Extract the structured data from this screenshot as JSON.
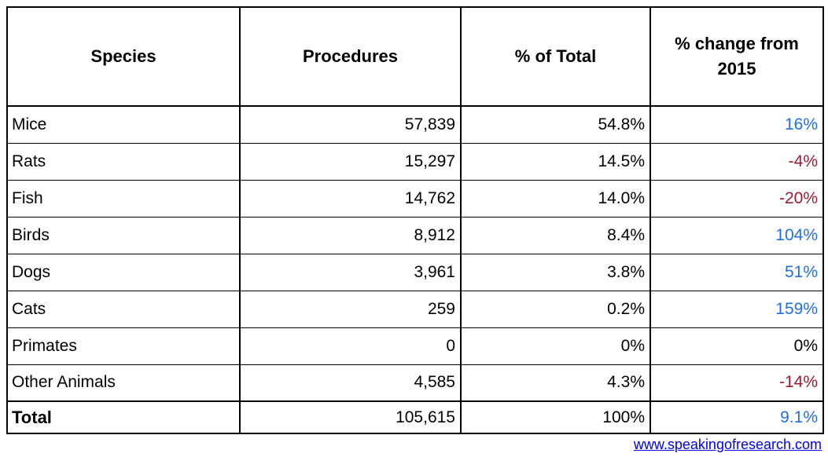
{
  "table": {
    "columns": [
      "Species",
      "Procedures",
      "% of Total",
      "% change from 2015"
    ],
    "rows": [
      {
        "species": "Mice",
        "procedures": "57,839",
        "pct_total": "54.8%",
        "change": "16%",
        "change_dir": "up"
      },
      {
        "species": "Rats",
        "procedures": "15,297",
        "pct_total": "14.5%",
        "change": "-4%",
        "change_dir": "down"
      },
      {
        "species": "Fish",
        "procedures": "14,762",
        "pct_total": "14.0%",
        "change": "-20%",
        "change_dir": "down"
      },
      {
        "species": "Birds",
        "procedures": "8,912",
        "pct_total": "8.4%",
        "change": "104%",
        "change_dir": "up"
      },
      {
        "species": "Dogs",
        "procedures": "3,961",
        "pct_total": "3.8%",
        "change": "51%",
        "change_dir": "up"
      },
      {
        "species": "Cats",
        "procedures": "259",
        "pct_total": "0.2%",
        "change": "159%",
        "change_dir": "up"
      },
      {
        "species": "Primates",
        "procedures": "0",
        "pct_total": "0%",
        "change": "0%",
        "change_dir": "neutral"
      },
      {
        "species": "Other Animals",
        "procedures": "4,585",
        "pct_total": "4.3%",
        "change": "-14%",
        "change_dir": "down"
      },
      {
        "species": "Total",
        "procedures": "105,615",
        "pct_total": "100%",
        "change": "9.1%",
        "change_dir": "up",
        "is_total": true
      }
    ]
  },
  "colors": {
    "positive_change": "#1f6fe0",
    "negative_change": "#9e1b32",
    "neutral_change": "#000000",
    "border": "#000000",
    "link": "#0000ee"
  },
  "footer": {
    "link_text": "www.speakingofresearch.com"
  },
  "chart_data": {
    "type": "table",
    "columns": [
      "Species",
      "Procedures",
      "% of Total",
      "% change from 2015"
    ],
    "rows": [
      [
        "Mice",
        57839,
        "54.8%",
        "16%"
      ],
      [
        "Rats",
        15297,
        "14.5%",
        "-4%"
      ],
      [
        "Fish",
        14762,
        "14.0%",
        "-20%"
      ],
      [
        "Birds",
        8912,
        "8.4%",
        "104%"
      ],
      [
        "Dogs",
        3961,
        "3.8%",
        "51%"
      ],
      [
        "Cats",
        259,
        "0.2%",
        "159%"
      ],
      [
        "Primates",
        0,
        "0%",
        "0%"
      ],
      [
        "Other Animals",
        4585,
        "4.3%",
        "-14%"
      ],
      [
        "Total",
        105615,
        "100%",
        "9.1%"
      ]
    ],
    "notes": "Positive % changes shown in blue, negative in dark red, zero in black. Source link: www.speakingofresearch.com"
  }
}
